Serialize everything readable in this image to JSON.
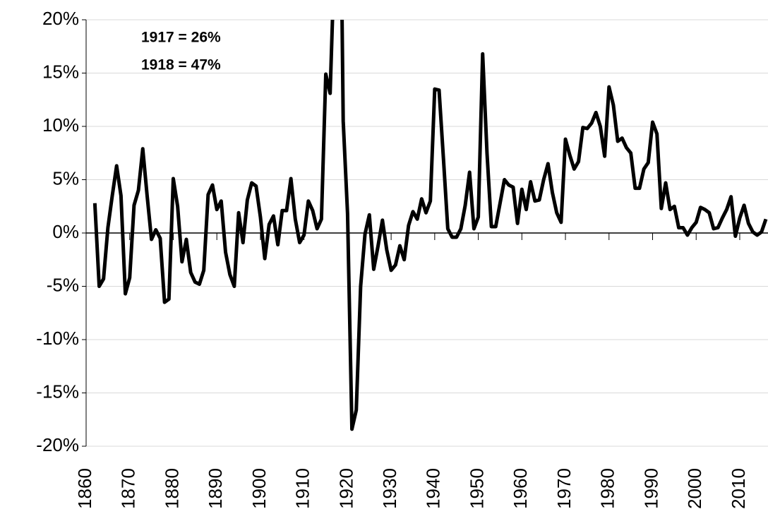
{
  "chart_data": {
    "type": "line",
    "annotations": [
      "1917 = 26%",
      "1918 = 47%"
    ],
    "x": [
      1862,
      1863,
      1864,
      1865,
      1866,
      1867,
      1868,
      1869,
      1870,
      1871,
      1872,
      1873,
      1874,
      1875,
      1876,
      1877,
      1878,
      1879,
      1880,
      1881,
      1882,
      1883,
      1884,
      1885,
      1886,
      1887,
      1888,
      1889,
      1890,
      1891,
      1892,
      1893,
      1894,
      1895,
      1896,
      1897,
      1898,
      1899,
      1900,
      1901,
      1902,
      1903,
      1904,
      1905,
      1906,
      1907,
      1908,
      1909,
      1910,
      1911,
      1912,
      1913,
      1914,
      1915,
      1916,
      1917,
      1918,
      1919,
      1920,
      1921,
      1922,
      1923,
      1924,
      1925,
      1926,
      1927,
      1928,
      1929,
      1930,
      1931,
      1932,
      1933,
      1934,
      1935,
      1936,
      1937,
      1938,
      1939,
      1940,
      1941,
      1942,
      1943,
      1944,
      1945,
      1946,
      1947,
      1948,
      1949,
      1950,
      1951,
      1952,
      1953,
      1954,
      1955,
      1956,
      1957,
      1958,
      1959,
      1960,
      1961,
      1962,
      1963,
      1964,
      1965,
      1966,
      1967,
      1968,
      1969,
      1970,
      1971,
      1972,
      1973,
      1974,
      1975,
      1976,
      1977,
      1978,
      1979,
      1980,
      1981,
      1982,
      1983,
      1984,
      1985,
      1986,
      1987,
      1988,
      1989,
      1990,
      1991,
      1992,
      1993,
      1994,
      1995,
      1996,
      1997,
      1998,
      1999,
      2000,
      2001,
      2002,
      2003,
      2004,
      2005,
      2006,
      2007,
      2008,
      2009,
      2010,
      2011,
      2012,
      2013,
      2014,
      2015,
      2016
    ],
    "values": [
      2.8,
      -5.0,
      -4.3,
      0.5,
      3.5,
      6.3,
      3.5,
      -5.7,
      -4.2,
      2.6,
      4.0,
      7.9,
      3.5,
      -0.6,
      0.3,
      -0.5,
      -6.5,
      -6.2,
      5.1,
      2.5,
      -2.7,
      -0.6,
      -3.7,
      -4.6,
      -4.8,
      -3.5,
      3.6,
      4.5,
      2.2,
      3.0,
      -1.8,
      -3.9,
      -5.0,
      1.9,
      -0.9,
      3.1,
      4.7,
      4.4,
      1.5,
      -2.4,
      0.8,
      1.6,
      -1.1,
      2.1,
      2.1,
      5.1,
      1.3,
      -0.9,
      -0.2,
      3.0,
      2.1,
      0.4,
      1.3,
      14.9,
      13.1,
      26,
      47,
      10.5,
      1.8,
      -18.4,
      -16.6,
      -5.0,
      -0.1,
      1.7,
      -3.4,
      -1.2,
      1.2,
      -1.6,
      -3.5,
      -3.0,
      -1.2,
      -2.5,
      0.7,
      2.0,
      1.3,
      3.2,
      1.9,
      3.0,
      13.5,
      13.4,
      7.0,
      0.4,
      -0.4,
      -0.4,
      0.4,
      2.6,
      5.7,
      0.4,
      1.5,
      16.8,
      7.5,
      0.6,
      0.6,
      2.8,
      5.0,
      4.5,
      4.3,
      0.9,
      4.1,
      2.2,
      4.8,
      3.0,
      3.1,
      5.0,
      6.5,
      3.8,
      1.9,
      1.0,
      8.8,
      7.3,
      6.0,
      6.7,
      9.9,
      9.8,
      10.3,
      11.3,
      10.0,
      7.2,
      13.7,
      12.0,
      8.6,
      8.9,
      8.0,
      7.5,
      4.2,
      4.2,
      6.0,
      6.6,
      10.4,
      9.3,
      2.3,
      4.7,
      2.2,
      2.5,
      0.5,
      0.5,
      -0.2,
      0.5,
      1.0,
      2.4,
      2.2,
      1.9,
      0.4,
      0.5,
      1.4,
      2.2,
      3.4,
      -0.3,
      1.4,
      2.6,
      0.9,
      0.1,
      -0.2,
      0.1,
      1.3
    ],
    "color": "#000000",
    "xlim": [
      1860,
      2016
    ],
    "xticks": [
      1860,
      1870,
      1880,
      1890,
      1900,
      1910,
      1920,
      1930,
      1940,
      1950,
      1960,
      1970,
      1980,
      1990,
      2000,
      2010
    ],
    "ylim": [
      -20,
      20
    ],
    "yticks": [
      {
        "value": -20,
        "label": "-20%"
      },
      {
        "value": -15,
        "label": "-15%"
      },
      {
        "value": -10,
        "label": "-10%"
      },
      {
        "value": -5,
        "label": "-5%"
      },
      {
        "value": 0,
        "label": "0%"
      },
      {
        "value": 5,
        "label": "5%"
      },
      {
        "value": 10,
        "label": "10%"
      },
      {
        "value": 15,
        "label": "15%"
      },
      {
        "value": 20,
        "label": "20%"
      }
    ],
    "grid": true
  }
}
